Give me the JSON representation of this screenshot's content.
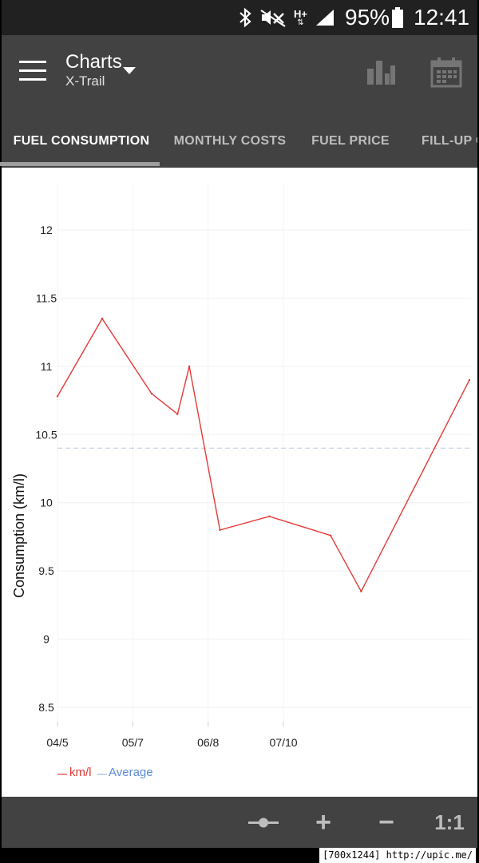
{
  "status": {
    "battery_percent": "95%",
    "time": "12:41",
    "network": "H+"
  },
  "appbar": {
    "title": "Charts",
    "subtitle": "X-Trail",
    "menu_icon": "hamburger-menu-icon",
    "chart_icon": "bar-chart-icon",
    "calendar_icon": "calendar-icon"
  },
  "tabs": [
    {
      "label": "FUEL CONSUMPTION",
      "active": true
    },
    {
      "label": "MONTHLY COSTS",
      "active": false
    },
    {
      "label": "FUEL PRICE",
      "active": false
    },
    {
      "label": "FILL-UP C",
      "active": false
    }
  ],
  "chart_data": {
    "type": "line",
    "title": "",
    "xlabel": "",
    "ylabel": "Consumption (km/l)",
    "ylim": [
      8.5,
      12
    ],
    "yticks": [
      "12",
      "11.5",
      "11",
      "10.5",
      "10",
      "9.5",
      "9",
      "8.5"
    ],
    "xticks": [
      "04/5",
      "05/7",
      "06/8",
      "07/10"
    ],
    "grid": true,
    "legend_position": "bottom-left",
    "series": [
      {
        "name": "km/l",
        "color": "#e53935",
        "points": [
          {
            "x": "2016-04-05",
            "y": 10.78
          },
          {
            "x": "2016-04-24",
            "y": 11.35
          },
          {
            "x": "2016-05-15",
            "y": 10.8
          },
          {
            "x": "2016-05-26",
            "y": 10.65
          },
          {
            "x": "2016-05-31",
            "y": 11.0
          },
          {
            "x": "2016-06-13",
            "y": 9.8
          },
          {
            "x": "2016-07-04",
            "y": 9.9
          },
          {
            "x": "2016-07-30",
            "y": 9.76
          },
          {
            "x": "2016-08-12",
            "y": 9.35
          },
          {
            "x": "2016-09-27",
            "y": 10.9
          }
        ]
      },
      {
        "name": "Average",
        "color": "#5c8bd6",
        "value": 10.4
      }
    ]
  },
  "bottombar": {
    "slider_icon": "zoom-slider-icon",
    "zoom_in": "+",
    "zoom_out": "−",
    "reset_label": "1:1"
  },
  "watermark": "[700x1244] http://upic.me/"
}
